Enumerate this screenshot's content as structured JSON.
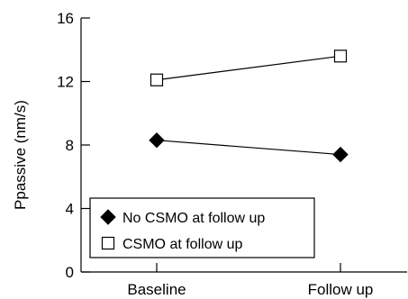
{
  "chart_data": {
    "type": "line",
    "categories": [
      "Baseline",
      "Follow up"
    ],
    "ylabel": "Ppassive (nm/s)",
    "xlabel": "",
    "ylim": [
      0,
      16
    ],
    "yticks": [
      0,
      4,
      8,
      12,
      16
    ],
    "grid": false,
    "legend_position": "bottom-left",
    "series": [
      {
        "name": "No CSMO at follow up",
        "marker": "filled-diamond",
        "color": "#000000",
        "values": [
          8.3,
          7.4
        ]
      },
      {
        "name": "CSMO at follow up",
        "marker": "open-square",
        "color": "#000000",
        "values": [
          12.1,
          13.6
        ]
      }
    ]
  }
}
